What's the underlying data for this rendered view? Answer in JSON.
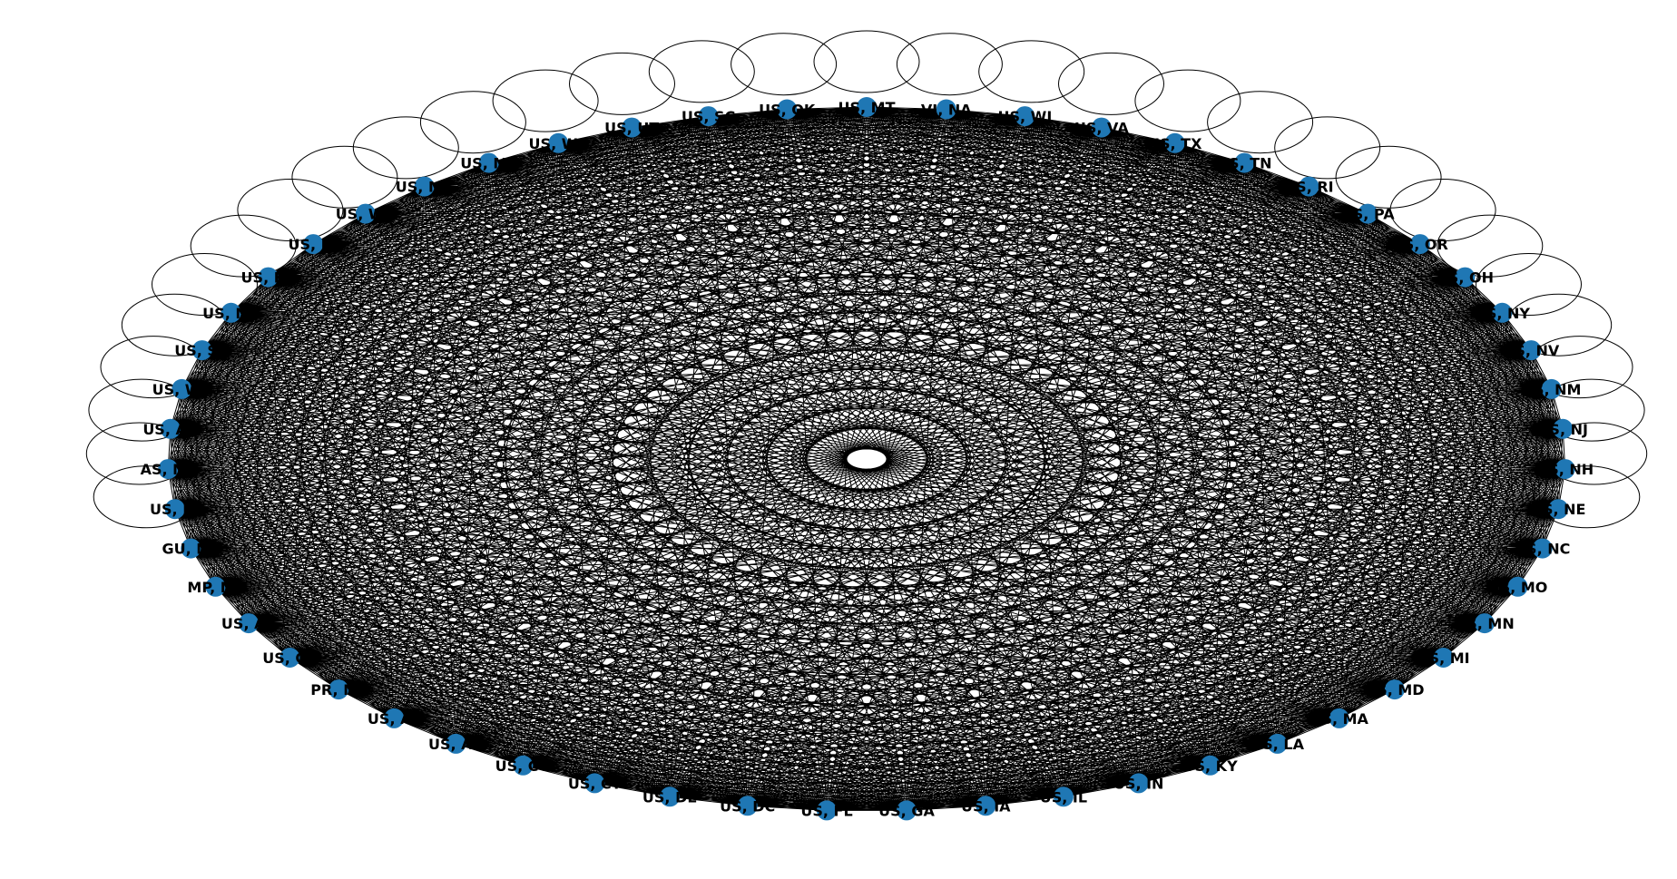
{
  "graph": {
    "node_color": "#1f77b4",
    "edge_color": "#000000",
    "label_color": "#000000",
    "layout": "circular",
    "connectivity": "complete",
    "self_loops": true,
    "nodes": [
      {
        "label": "US, MT"
      },
      {
        "label": "US, OK"
      },
      {
        "label": "US, SC"
      },
      {
        "label": "US, UT"
      },
      {
        "label": "US, WA"
      },
      {
        "label": "US, ME"
      },
      {
        "label": "US, MS"
      },
      {
        "label": "US, WV"
      },
      {
        "label": "US, ID"
      },
      {
        "label": "US, KS"
      },
      {
        "label": "US, ND"
      },
      {
        "label": "US, SD"
      },
      {
        "label": "US, WY"
      },
      {
        "label": "US, AK"
      },
      {
        "label": "AS, NA"
      },
      {
        "label": "US, HI"
      },
      {
        "label": "GU, NA"
      },
      {
        "label": "MP, NA"
      },
      {
        "label": "US, AZ"
      },
      {
        "label": "US, CA"
      },
      {
        "label": "PR, NA"
      },
      {
        "label": "US, AL"
      },
      {
        "label": "US, AR"
      },
      {
        "label": "US, CO"
      },
      {
        "label": "US, CT"
      },
      {
        "label": "US, DE"
      },
      {
        "label": "US, DC"
      },
      {
        "label": "US, FL"
      },
      {
        "label": "US, GA"
      },
      {
        "label": "US, IA"
      },
      {
        "label": "US, IL"
      },
      {
        "label": "US, IN"
      },
      {
        "label": "US, KY"
      },
      {
        "label": "US, LA"
      },
      {
        "label": "US, MA"
      },
      {
        "label": "US, MD"
      },
      {
        "label": "US, MI"
      },
      {
        "label": "US, MN"
      },
      {
        "label": "US, MO"
      },
      {
        "label": "US, NC"
      },
      {
        "label": "US, NE"
      },
      {
        "label": "US, NH"
      },
      {
        "label": "US, NJ"
      },
      {
        "label": "US, NM"
      },
      {
        "label": "US, NV"
      },
      {
        "label": "US, NY"
      },
      {
        "label": "US, OH"
      },
      {
        "label": "US, OR"
      },
      {
        "label": "US, PA"
      },
      {
        "label": "US, RI"
      },
      {
        "label": "US, TN"
      },
      {
        "label": "US, TX"
      },
      {
        "label": "US, VA"
      },
      {
        "label": "US, WI"
      },
      {
        "label": "VI, NA"
      }
    ]
  }
}
